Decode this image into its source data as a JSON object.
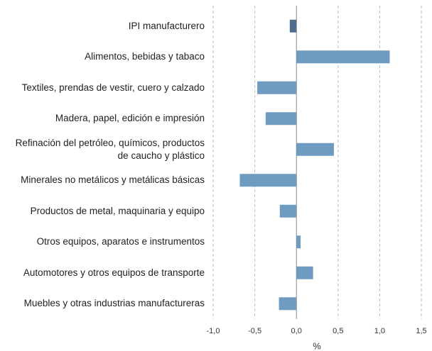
{
  "chart_data": {
    "type": "bar",
    "orientation": "horizontal",
    "categories": [
      "IPI manufacturero",
      "Alimentos, bebidas y tabaco",
      "Textiles, prendas de vestir, cuero y calzado",
      "Madera, papel, edición e impresión",
      "Refinación del petróleo, químicos, productos de caucho y plástico",
      "Minerales no metálicos y metálicas básicas",
      "Productos de metal, maquinaria y equipo",
      "Otros equipos, aparatos e instrumentos",
      "Automotores y otros equipos de transporte",
      "Muebles y otras industrias manufactureras"
    ],
    "values": [
      -0.08,
      1.12,
      -0.47,
      -0.37,
      0.45,
      -0.68,
      -0.2,
      0.05,
      0.2,
      -0.21
    ],
    "colors": [
      "#4f6d8c",
      "#6f9bc0",
      "#6f9bc0",
      "#6f9bc0",
      "#6f9bc0",
      "#6f9bc0",
      "#6f9bc0",
      "#6f9bc0",
      "#6f9bc0",
      "#6f9bc0"
    ],
    "xlabel": "%",
    "xlim": [
      -1.0,
      1.5
    ],
    "xticks": [
      {
        "value": -1.0,
        "label": "-1,0"
      },
      {
        "value": -0.5,
        "label": "-0,5"
      },
      {
        "value": 0,
        "label": "0,0"
      },
      {
        "value": 0.5,
        "label": "0,5"
      },
      {
        "value": 1.0,
        "label": "1,0"
      },
      {
        "value": 1.5,
        "label": "1,5"
      }
    ],
    "grid": true
  }
}
